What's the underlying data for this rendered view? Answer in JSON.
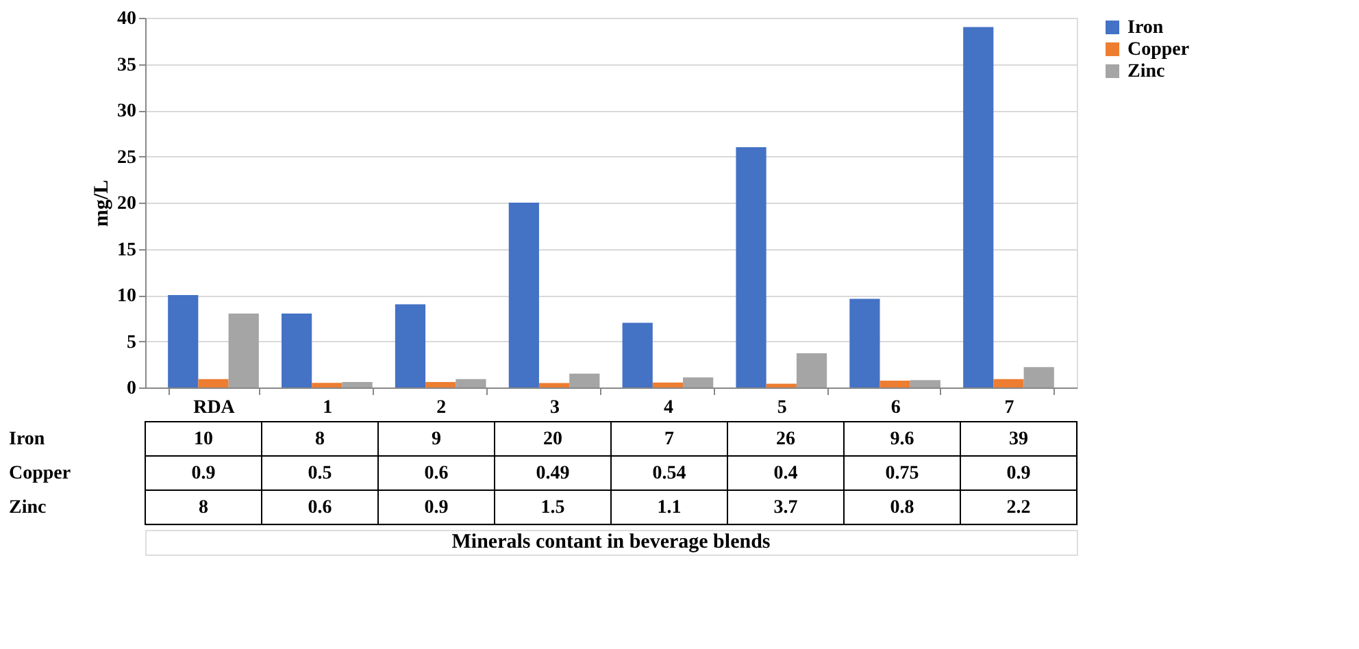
{
  "chart_data": {
    "type": "bar",
    "annotations": [
      "Minerals  contant in beverage blends"
    ],
    "ylabel": "mg/L",
    "categories": [
      "RDA",
      "1",
      "2",
      "3",
      "4",
      "5",
      "6",
      "7"
    ],
    "series": [
      {
        "name": "Iron",
        "color": "#4472c4",
        "values": [
          10,
          8,
          9,
          20,
          7,
          26,
          9.6,
          39
        ]
      },
      {
        "name": "Copper",
        "color": "#ed7d31",
        "values": [
          0.9,
          0.5,
          0.6,
          0.49,
          0.54,
          0.4,
          0.75,
          0.9
        ]
      },
      {
        "name": "Zinc",
        "color": "#a5a5a5",
        "values": [
          8,
          0.6,
          0.9,
          1.5,
          1.1,
          3.7,
          0.8,
          2.2
        ]
      }
    ],
    "ylim": [
      0,
      40
    ],
    "yticks": [
      0,
      5,
      10,
      15,
      20,
      25,
      30,
      35,
      40
    ],
    "grid": "y",
    "legend": "right",
    "data_labels": true
  }
}
